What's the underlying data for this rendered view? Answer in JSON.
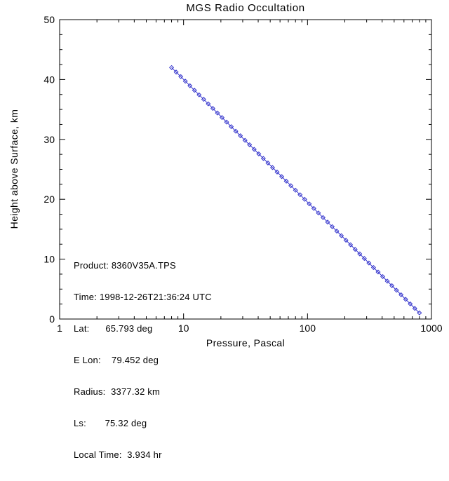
{
  "page": {
    "background": "#ffffff"
  },
  "chart_data": {
    "type": "line",
    "title": "MGS Radio Occultation",
    "xlabel": "Pressure, Pascal",
    "ylabel": "Height above Surface, km",
    "xscale": "log",
    "xlim": [
      1,
      1000
    ],
    "ylim": [
      0,
      50
    ],
    "x_ticks": [
      1,
      10,
      100,
      1000
    ],
    "y_ticks": [
      0,
      10,
      20,
      30,
      40,
      50
    ],
    "grid": false,
    "legend": "none",
    "marker": "open-diamond",
    "line_color": "#3333cc",
    "axis_color": "#000000",
    "points": [
      [
        8.0,
        42.0
      ],
      [
        8.71,
        41.24
      ],
      [
        9.49,
        40.48
      ],
      [
        10.33,
        39.72
      ],
      [
        11.25,
        38.96
      ],
      [
        12.25,
        38.2
      ],
      [
        13.34,
        37.44
      ],
      [
        14.53,
        36.69
      ],
      [
        15.82,
        35.93
      ],
      [
        17.23,
        35.17
      ],
      [
        18.76,
        34.41
      ],
      [
        20.43,
        33.65
      ],
      [
        22.25,
        32.89
      ],
      [
        24.23,
        32.13
      ],
      [
        26.39,
        31.37
      ],
      [
        28.74,
        30.61
      ],
      [
        31.3,
        29.85
      ],
      [
        34.08,
        29.1
      ],
      [
        37.12,
        28.34
      ],
      [
        40.42,
        27.58
      ],
      [
        44.02,
        26.82
      ],
      [
        47.94,
        26.06
      ],
      [
        52.21,
        25.3
      ],
      [
        56.85,
        24.54
      ],
      [
        61.92,
        23.78
      ],
      [
        67.43,
        23.02
      ],
      [
        73.43,
        22.27
      ],
      [
        79.97,
        21.51
      ],
      [
        87.09,
        20.75
      ],
      [
        94.84,
        19.99
      ],
      [
        103.28,
        19.23
      ],
      [
        112.48,
        18.47
      ],
      [
        122.49,
        17.71
      ],
      [
        133.39,
        16.95
      ],
      [
        145.27,
        16.19
      ],
      [
        158.2,
        15.43
      ],
      [
        172.28,
        14.68
      ],
      [
        187.62,
        13.92
      ],
      [
        204.32,
        13.16
      ],
      [
        222.51,
        12.4
      ],
      [
        242.32,
        11.64
      ],
      [
        263.89,
        10.88
      ],
      [
        287.38,
        10.12
      ],
      [
        312.96,
        9.36
      ],
      [
        340.82,
        8.6
      ],
      [
        371.16,
        7.85
      ],
      [
        404.19,
        7.09
      ],
      [
        440.17,
        6.33
      ],
      [
        479.35,
        5.57
      ],
      [
        522.02,
        4.81
      ],
      [
        568.48,
        4.05
      ],
      [
        619.08,
        3.29
      ],
      [
        674.18,
        2.53
      ],
      [
        734.19,
        1.77
      ],
      [
        799.53,
        1.02
      ]
    ],
    "annotation": {
      "lines": [
        "Product: 8360V35A.TPS",
        "Time: 1998-12-26T21:36:24 UTC",
        "Lat:      65.793 deg",
        "E Lon:    79.452 deg",
        "Radius:  3377.32 km",
        "Ls:       75.32 deg",
        "Local Time:  3.934 hr"
      ]
    }
  }
}
